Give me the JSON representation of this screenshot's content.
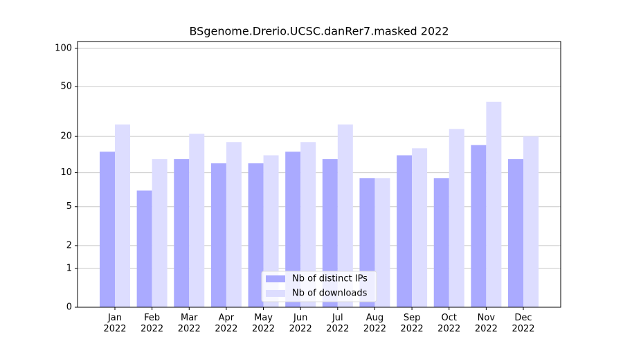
{
  "chart_data": {
    "type": "bar",
    "title": "BSgenome.Drerio.UCSC.danRer7.masked 2022",
    "categories": [
      "Jan\n2022",
      "Feb\n2022",
      "Mar\n2022",
      "Apr\n2022",
      "May\n2022",
      "Jun\n2022",
      "Jul\n2022",
      "Aug\n2022",
      "Sep\n2022",
      "Oct\n2022",
      "Nov\n2022",
      "Dec\n2022"
    ],
    "series": [
      {
        "name": "Nb of distinct IPs",
        "color": "#aaaaff",
        "values": [
          15,
          7,
          13,
          12,
          12,
          15,
          13,
          9,
          14,
          9,
          17,
          13
        ]
      },
      {
        "name": "Nb of downloads",
        "color": "#ddddff",
        "values": [
          25,
          13,
          21,
          18,
          14,
          18,
          25,
          9,
          16,
          23,
          38,
          20
        ]
      }
    ],
    "yscale": "log1p",
    "ylim": [
      0,
      113
    ],
    "yticks": [
      0,
      1,
      2,
      5,
      10,
      20,
      50,
      100
    ],
    "grid": true,
    "legend": "lower center"
  }
}
